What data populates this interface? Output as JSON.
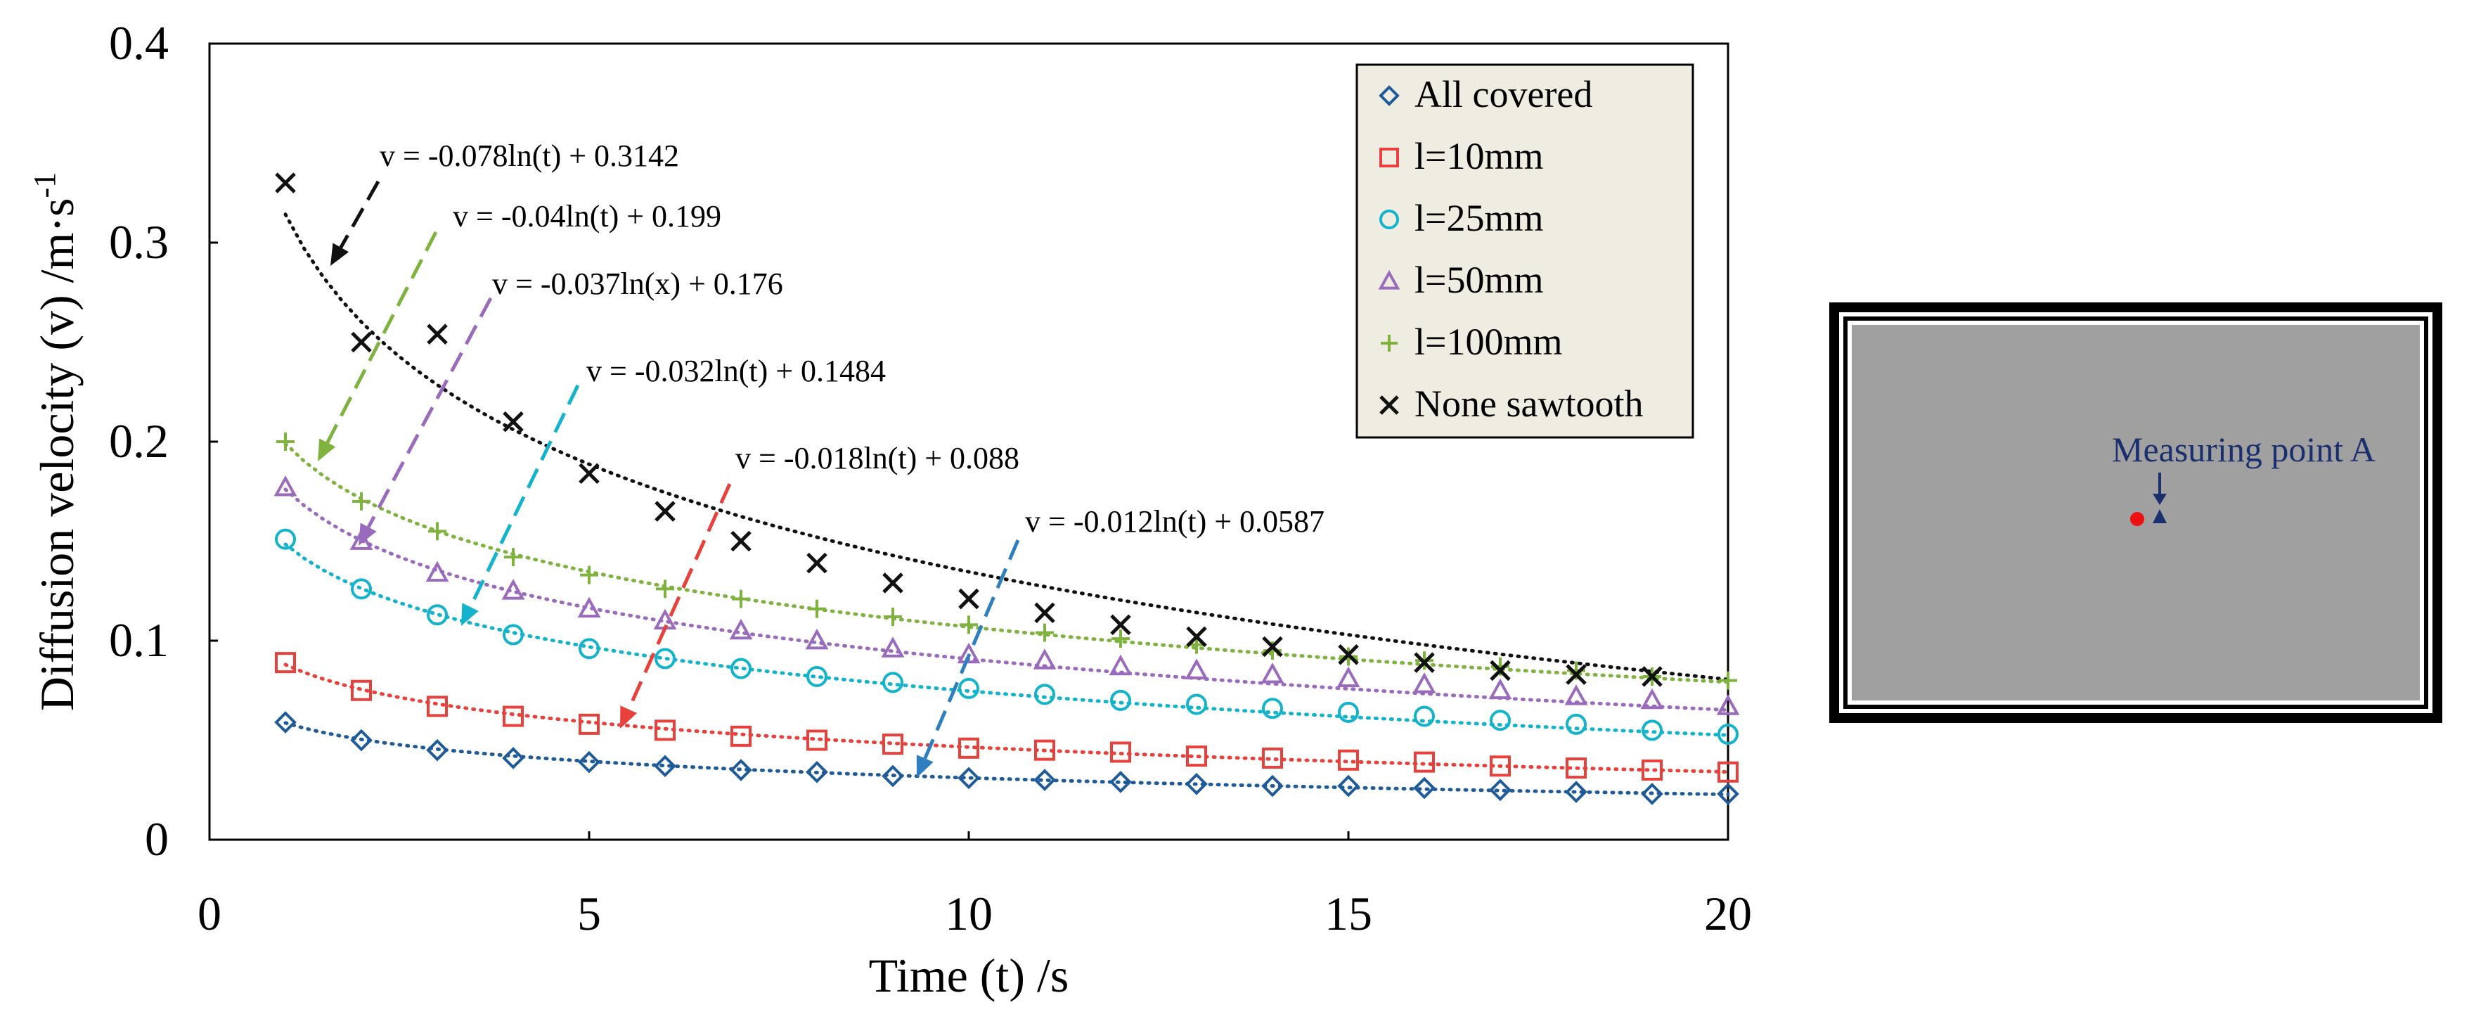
{
  "chart_data": {
    "type": "scatter",
    "xlabel": "Time (t) /s",
    "ylabel": "Diffusion velocity (v) /m·s",
    "ylabel_superscript": "-1",
    "xlim": [
      0,
      20
    ],
    "ylim": [
      0,
      0.4
    ],
    "x_ticks": [
      "0",
      "5",
      "10",
      "15",
      "20"
    ],
    "y_ticks": [
      "0",
      "0.1",
      "0.2",
      "0.3",
      "0.4"
    ],
    "x": [
      1,
      2,
      3,
      4,
      5,
      6,
      7,
      8,
      9,
      10,
      11,
      12,
      13,
      14,
      15,
      16,
      17,
      18,
      19,
      20
    ],
    "trendline": "logarithmic",
    "series": [
      {
        "name": "All covered",
        "marker": "diamond",
        "color": "#1f5b99",
        "values": [
          0.059,
          0.05,
          0.045,
          0.041,
          0.039,
          0.037,
          0.035,
          0.034,
          0.032,
          0.031,
          0.03,
          0.029,
          0.028,
          0.027,
          0.027,
          0.026,
          0.025,
          0.024,
          0.023,
          0.023
        ],
        "fit": {
          "a": -0.012,
          "b": 0.0587
        }
      },
      {
        "name": "l=10mm",
        "marker": "square",
        "color": "#e8413b",
        "values": [
          0.089,
          0.075,
          0.067,
          0.062,
          0.058,
          0.055,
          0.052,
          0.05,
          0.048,
          0.046,
          0.045,
          0.044,
          0.042,
          0.041,
          0.04,
          0.039,
          0.037,
          0.036,
          0.035,
          0.034
        ],
        "fit": {
          "a": -0.018,
          "b": 0.088
        }
      },
      {
        "name": "l=25mm",
        "marker": "circle",
        "color": "#13b3cc",
        "values": [
          0.151,
          0.126,
          0.113,
          0.103,
          0.096,
          0.091,
          0.086,
          0.082,
          0.079,
          0.076,
          0.073,
          0.07,
          0.068,
          0.066,
          0.064,
          0.062,
          0.06,
          0.058,
          0.055,
          0.053
        ],
        "fit": {
          "a": -0.032,
          "b": 0.1484
        }
      },
      {
        "name": "l=50mm",
        "marker": "triangle",
        "color": "#9a6bbd",
        "values": [
          0.177,
          0.15,
          0.134,
          0.125,
          0.116,
          0.11,
          0.105,
          0.1,
          0.096,
          0.093,
          0.09,
          0.087,
          0.085,
          0.083,
          0.081,
          0.078,
          0.075,
          0.072,
          0.07,
          0.067
        ],
        "fit": {
          "a": -0.037,
          "b": 0.176
        }
      },
      {
        "name": "l=100mm",
        "marker": "plus",
        "color": "#7fb23e",
        "values": [
          0.2,
          0.17,
          0.155,
          0.142,
          0.133,
          0.126,
          0.121,
          0.116,
          0.112,
          0.108,
          0.104,
          0.101,
          0.098,
          0.095,
          0.092,
          0.09,
          0.087,
          0.085,
          0.082,
          0.08
        ],
        "fit": {
          "a": -0.04,
          "b": 0.199
        }
      },
      {
        "name": "None sawtooth",
        "marker": "cross",
        "color": "#111111",
        "values": [
          0.33,
          0.25,
          0.254,
          0.21,
          0.184,
          0.165,
          0.15,
          0.139,
          0.129,
          0.121,
          0.114,
          0.108,
          0.102,
          0.097,
          0.093,
          0.089,
          0.085,
          0.083,
          0.082,
          null
        ],
        "fit": {
          "a": -0.078,
          "b": 0.3142
        }
      }
    ],
    "equations": [
      {
        "text": "v = -0.078ln(t) + 0.3142",
        "series": "None sawtooth",
        "arrow_color": "#111111"
      },
      {
        "text": "v = -0.04ln(t) + 0.199",
        "series": "l=100mm",
        "arrow_color": "#7fb23e"
      },
      {
        "text": "v = -0.037ln(x) + 0.176",
        "series": "l=50mm",
        "arrow_color": "#9a6bbd"
      },
      {
        "text": "v = -0.032ln(t) + 0.1484",
        "series": "l=25mm",
        "arrow_color": "#13b3cc"
      },
      {
        "text": "v = -0.018ln(t) + 0.088",
        "series": "l=10mm",
        "arrow_color": "#e8413b"
      },
      {
        "text": "v = -0.012ln(t) + 0.0587",
        "series": "All covered",
        "arrow_color": "#2f7fc0"
      }
    ],
    "legend_position": "top-right",
    "legend_background": "#efece2"
  },
  "inset": {
    "label": "Measuring point A",
    "label_color": "#1a2f6e",
    "fill_color": "#a0a0a0",
    "point_color": "#ee1111",
    "marker_color": "#1a2f6e"
  }
}
